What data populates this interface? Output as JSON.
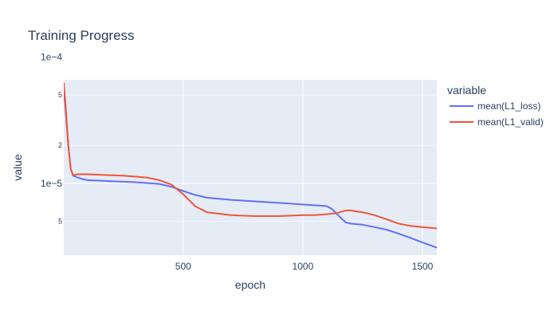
{
  "chart_data": {
    "type": "line",
    "title": "Training Progress",
    "xlabel": "epoch",
    "ylabel": "value",
    "xlim": [
      1,
      1560
    ],
    "ylim": [
      2.7e-06,
      6.6e-05
    ],
    "y_scale": "log",
    "grid": true,
    "legend_title": "variable",
    "legend_placement": "right",
    "x_ticks": [
      {
        "value": 500,
        "label": "500"
      },
      {
        "value": 1000,
        "label": "1000"
      },
      {
        "value": 1500,
        "label": "1500"
      }
    ],
    "y_major_ticks": [
      {
        "value": 1e-05,
        "label": "1e−5"
      },
      {
        "value": 0.0001,
        "label": "1e−4"
      }
    ],
    "y_minor_ticks": [
      {
        "value": 5e-06,
        "label": "5"
      },
      {
        "value": 2e-05,
        "label": "2"
      },
      {
        "value": 5e-05,
        "label": "5"
      }
    ],
    "plot_background": "#e5ecf6",
    "series": [
      {
        "name": "mean(L1_loss)",
        "color": "#636efa",
        "x": [
          1,
          10,
          20,
          30,
          40,
          50,
          60,
          80,
          100,
          150,
          200,
          300,
          400,
          450,
          500,
          550,
          600,
          700,
          800,
          900,
          1000,
          1050,
          1100,
          1120,
          1140,
          1160,
          1180,
          1200,
          1250,
          1300,
          1350,
          1400,
          1450,
          1500,
          1560
        ],
        "y": [
          5.5e-05,
          3.5e-05,
          2e-05,
          1.3e-05,
          1.15e-05,
          1.13e-05,
          1.11e-05,
          1.08e-05,
          1.06e-05,
          1.05e-05,
          1.04e-05,
          1.02e-05,
          9.9e-06,
          9.4e-06,
          8.7e-06,
          8.1e-06,
          7.7e-06,
          7.4e-06,
          7.2e-06,
          7e-06,
          6.8e-06,
          6.7e-06,
          6.6e-06,
          6.3e-06,
          5.8e-06,
          5.3e-06,
          4.9e-06,
          4.8e-06,
          4.7e-06,
          4.5e-06,
          4.3e-06,
          4e-06,
          3.7e-06,
          3.4e-06,
          3.1e-06
        ]
      },
      {
        "name": "mean(L1_valid)",
        "color": "#ef553b",
        "x": [
          1,
          10,
          20,
          30,
          40,
          50,
          60,
          80,
          100,
          150,
          200,
          250,
          300,
          350,
          400,
          450,
          500,
          550,
          600,
          700,
          800,
          900,
          1000,
          1050,
          1100,
          1140,
          1180,
          1200,
          1250,
          1300,
          1350,
          1400,
          1450,
          1500,
          1560
        ],
        "y": [
          6.2e-05,
          3.8e-05,
          2e-05,
          1.3e-05,
          1.16e-05,
          1.17e-05,
          1.18e-05,
          1.18e-05,
          1.18e-05,
          1.17e-05,
          1.16e-05,
          1.15e-05,
          1.13e-05,
          1.11e-05,
          1.06e-05,
          9.8e-06,
          8.2e-06,
          6.6e-06,
          5.9e-06,
          5.6e-06,
          5.5e-06,
          5.5e-06,
          5.6e-06,
          5.6e-06,
          5.7e-06,
          5.8e-06,
          6.1e-06,
          6.1e-06,
          5.9e-06,
          5.6e-06,
          5.2e-06,
          4.8e-06,
          4.6e-06,
          4.5e-06,
          4.4e-06
        ]
      }
    ]
  }
}
